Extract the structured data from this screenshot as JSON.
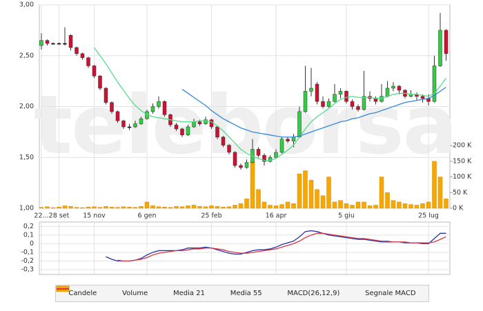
{
  "chart_data": [
    {
      "type": "candlestick",
      "watermark": "teleborsa",
      "categories": [
        "22...",
        null,
        null,
        "28 set",
        null,
        null,
        null,
        null,
        null,
        "15 nov",
        null,
        null,
        null,
        null,
        null,
        null,
        null,
        null,
        "6 gen",
        null,
        null,
        null,
        null,
        null,
        null,
        null,
        null,
        null,
        null,
        "25 feb",
        null,
        null,
        null,
        null,
        null,
        null,
        null,
        null,
        null,
        null,
        "16 apr",
        null,
        null,
        null,
        null,
        null,
        null,
        null,
        null,
        null,
        null,
        null,
        "5 giu",
        null,
        null,
        null,
        null,
        null,
        null,
        null,
        null,
        null,
        null,
        null,
        null,
        null,
        "25 lug",
        null,
        null,
        null
      ],
      "ylim": [
        1.0,
        3.0
      ],
      "yticks": [
        {
          "value": 1.0,
          "label": "1,00"
        },
        {
          "value": 1.5,
          "label": "1,50"
        },
        {
          "value": 2.0,
          "label": "2,00"
        },
        {
          "value": 2.5,
          "label": "2,50"
        },
        {
          "value": 3.0,
          "label": "3,00"
        }
      ],
      "y2lim": [
        0,
        650000
      ],
      "y2ticks": [
        {
          "value": 0,
          "label": "0 K"
        },
        {
          "value": 50000,
          "label": "50 K"
        },
        {
          "value": 100000,
          "label": "100 K"
        },
        {
          "value": 150000,
          "label": "150 K"
        },
        {
          "value": 200000,
          "label": "200 K"
        }
      ],
      "grid": true,
      "series": [
        {
          "name": "Candele",
          "type": "candlestick",
          "color": "#000000",
          "up_color": "#33cc44",
          "down_color": "#cc1133",
          "open": [
            2.6,
            2.65,
            2.62,
            2.62,
            2.62,
            2.7,
            2.58,
            2.52,
            2.48,
            2.4,
            2.3,
            2.18,
            2.04,
            1.95,
            1.86,
            1.8,
            1.8,
            1.83,
            1.88,
            1.95,
            2.0,
            2.05,
            1.92,
            1.82,
            1.78,
            1.72,
            1.8,
            1.85,
            1.83,
            1.87,
            1.8,
            1.7,
            1.62,
            1.55,
            1.42,
            1.4,
            1.45,
            1.58,
            1.52,
            1.46,
            1.5,
            1.55,
            1.68,
            1.66,
            1.7,
            1.95,
            2.15,
            2.22,
            2.05,
            2.0,
            2.05,
            2.12,
            2.15,
            2.05,
            2.0,
            1.97,
            2.1,
            2.08,
            2.05,
            2.1,
            2.18,
            2.2,
            2.16,
            2.1,
            2.12,
            2.1,
            2.08,
            2.05,
            2.4,
            2.75
          ],
          "high": [
            2.72,
            2.66,
            2.63,
            2.63,
            2.78,
            2.71,
            2.59,
            2.53,
            2.49,
            2.41,
            2.31,
            2.19,
            2.05,
            1.96,
            1.87,
            1.83,
            1.86,
            1.9,
            1.97,
            2.03,
            2.1,
            2.06,
            1.93,
            1.84,
            1.79,
            1.82,
            1.88,
            1.87,
            1.9,
            1.88,
            1.81,
            1.71,
            1.63,
            1.56,
            1.44,
            1.48,
            1.68,
            1.6,
            1.54,
            1.52,
            1.58,
            1.7,
            1.7,
            1.73,
            2.0,
            2.4,
            2.38,
            2.24,
            2.1,
            2.08,
            2.22,
            2.18,
            2.16,
            2.07,
            2.02,
            2.35,
            2.15,
            2.1,
            2.22,
            2.25,
            2.24,
            2.21,
            2.17,
            2.16,
            2.14,
            2.12,
            2.12,
            2.5,
            2.92,
            2.76
          ],
          "low": [
            2.56,
            2.6,
            2.61,
            2.61,
            2.6,
            2.55,
            2.5,
            2.46,
            2.38,
            2.28,
            2.16,
            2.02,
            1.93,
            1.84,
            1.78,
            1.77,
            1.79,
            1.82,
            1.87,
            1.93,
            1.98,
            1.9,
            1.8,
            1.76,
            1.7,
            1.71,
            1.79,
            1.81,
            1.82,
            1.78,
            1.68,
            1.6,
            1.53,
            1.4,
            1.38,
            1.39,
            1.44,
            1.5,
            1.42,
            1.45,
            1.49,
            1.54,
            1.64,
            1.6,
            1.69,
            1.94,
            2.1,
            2.02,
            1.98,
            1.99,
            2.04,
            2.08,
            2.03,
            1.97,
            1.95,
            1.96,
            2.05,
            2.02,
            2.04,
            2.09,
            2.15,
            2.12,
            2.08,
            2.09,
            2.06,
            2.04,
            2.01,
            2.04,
            2.39,
            2.45
          ],
          "close": [
            2.65,
            2.62,
            2.62,
            2.62,
            2.62,
            2.58,
            2.52,
            2.48,
            2.4,
            2.3,
            2.18,
            2.04,
            1.95,
            1.86,
            1.8,
            1.8,
            1.83,
            1.88,
            1.95,
            2.0,
            2.05,
            1.92,
            1.82,
            1.78,
            1.72,
            1.8,
            1.85,
            1.83,
            1.87,
            1.8,
            1.7,
            1.62,
            1.55,
            1.42,
            1.4,
            1.45,
            1.58,
            1.52,
            1.46,
            1.5,
            1.55,
            1.68,
            1.66,
            1.7,
            1.95,
            2.15,
            2.18,
            2.05,
            2.0,
            2.05,
            2.12,
            2.15,
            2.05,
            2.0,
            1.97,
            2.1,
            2.08,
            2.05,
            2.1,
            2.18,
            2.2,
            2.16,
            2.1,
            2.12,
            2.1,
            2.08,
            2.05,
            2.4,
            2.75,
            2.52
          ]
        },
        {
          "name": "Volume",
          "type": "bar",
          "axis": "y2",
          "color": "#f7a800",
          "values": [
            3000,
            5000,
            2000,
            4000,
            8000,
            6000,
            3000,
            2000,
            4000,
            5000,
            3000,
            6000,
            4000,
            3000,
            5000,
            4000,
            3000,
            6000,
            20000,
            8000,
            5000,
            4000,
            3000,
            6000,
            5000,
            8000,
            10000,
            6000,
            5000,
            8000,
            6000,
            4000,
            5000,
            10000,
            15000,
            30000,
            150000,
            60000,
            20000,
            10000,
            8000,
            12000,
            20000,
            15000,
            110000,
            120000,
            90000,
            60000,
            40000,
            100000,
            20000,
            25000,
            15000,
            10000,
            20000,
            20000,
            8000,
            10000,
            100000,
            50000,
            25000,
            20000,
            15000,
            12000,
            10000,
            15000,
            20000,
            150000,
            100000,
            30000
          ]
        },
        {
          "name": "Media 21",
          "type": "line",
          "color": "#55dd88",
          "values": [
            null,
            null,
            null,
            null,
            null,
            null,
            null,
            null,
            null,
            2.58,
            2.5,
            2.42,
            2.33,
            2.24,
            2.16,
            2.08,
            2.01,
            1.96,
            1.92,
            1.9,
            1.89,
            1.88,
            1.87,
            1.86,
            1.85,
            1.85,
            1.85,
            1.86,
            1.86,
            1.85,
            1.81,
            1.76,
            1.7,
            1.64,
            1.58,
            1.54,
            1.51,
            1.49,
            1.47,
            1.47,
            1.49,
            1.53,
            1.57,
            1.62,
            1.7,
            1.78,
            1.85,
            1.9,
            1.94,
            1.98,
            2.03,
            2.07,
            2.09,
            2.1,
            2.09,
            2.09,
            2.09,
            2.08,
            2.08,
            2.1,
            2.12,
            2.13,
            2.13,
            2.12,
            2.12,
            2.11,
            2.1,
            2.13,
            2.2,
            2.28
          ]
        },
        {
          "name": "Media 55",
          "type": "line",
          "color": "#3388dd",
          "values": [
            null,
            null,
            null,
            null,
            null,
            null,
            null,
            null,
            null,
            null,
            null,
            null,
            null,
            null,
            null,
            null,
            null,
            null,
            null,
            null,
            null,
            null,
            null,
            null,
            2.17,
            2.13,
            2.09,
            2.05,
            2.01,
            1.96,
            1.92,
            1.88,
            1.85,
            1.82,
            1.79,
            1.77,
            1.75,
            1.74,
            1.73,
            1.72,
            1.71,
            1.7,
            1.7,
            1.7,
            1.71,
            1.73,
            1.75,
            1.77,
            1.79,
            1.81,
            1.83,
            1.85,
            1.86,
            1.88,
            1.89,
            1.91,
            1.93,
            1.94,
            1.96,
            1.98,
            2.0,
            2.02,
            2.04,
            2.05,
            2.06,
            2.07,
            2.08,
            2.11,
            2.15,
            2.19
          ]
        }
      ]
    },
    {
      "type": "line",
      "ylim": [
        -0.355,
        0.25
      ],
      "yticks": [
        {
          "value": -0.3,
          "label": "-0,3"
        },
        {
          "value": -0.2,
          "label": "-0,2"
        },
        {
          "value": -0.1,
          "label": "-0,1"
        },
        0,
        {
          "value": 0.1,
          "label": "0,1"
        },
        {
          "value": 0.2,
          "label": "0,2"
        }
      ],
      "grid": true,
      "series": [
        {
          "name": "MACD(26,12,9)",
          "type": "line",
          "color": "#2233aa",
          "values": [
            null,
            null,
            null,
            null,
            null,
            null,
            null,
            null,
            null,
            null,
            null,
            -0.15,
            -0.18,
            -0.2,
            -0.2,
            -0.2,
            -0.19,
            -0.17,
            -0.13,
            -0.1,
            -0.08,
            -0.08,
            -0.08,
            -0.08,
            -0.07,
            -0.05,
            -0.05,
            -0.05,
            -0.04,
            -0.05,
            -0.07,
            -0.09,
            -0.11,
            -0.12,
            -0.12,
            -0.1,
            -0.08,
            -0.07,
            -0.07,
            -0.06,
            -0.04,
            -0.01,
            0.01,
            0.03,
            0.08,
            0.14,
            0.15,
            0.14,
            0.12,
            0.1,
            0.09,
            0.08,
            0.07,
            0.06,
            0.05,
            0.05,
            0.04,
            0.03,
            0.02,
            0.02,
            0.02,
            0.02,
            0.01,
            0.01,
            0.01,
            0,
            0,
            0.06,
            0.12,
            0.12
          ]
        },
        {
          "name": "Segnale MACD",
          "type": "line",
          "color": "#dd3344",
          "values": [
            null,
            null,
            null,
            null,
            null,
            null,
            null,
            null,
            null,
            null,
            null,
            null,
            null,
            -0.19,
            -0.2,
            -0.2,
            -0.19,
            -0.18,
            -0.16,
            -0.13,
            -0.11,
            -0.1,
            -0.09,
            -0.08,
            -0.08,
            -0.07,
            -0.06,
            -0.06,
            -0.05,
            -0.05,
            -0.06,
            -0.07,
            -0.09,
            -0.1,
            -0.11,
            -0.11,
            -0.1,
            -0.09,
            -0.08,
            -0.07,
            -0.06,
            -0.04,
            -0.02,
            0,
            0.03,
            0.07,
            0.1,
            0.12,
            0.12,
            0.11,
            0.1,
            0.09,
            0.08,
            0.07,
            0.06,
            0.06,
            0.05,
            0.04,
            0.03,
            0.03,
            0.02,
            0.02,
            0.02,
            0.01,
            0.01,
            0.01,
            0.01,
            0.02,
            0.05,
            0.08
          ]
        }
      ]
    }
  ]
}
